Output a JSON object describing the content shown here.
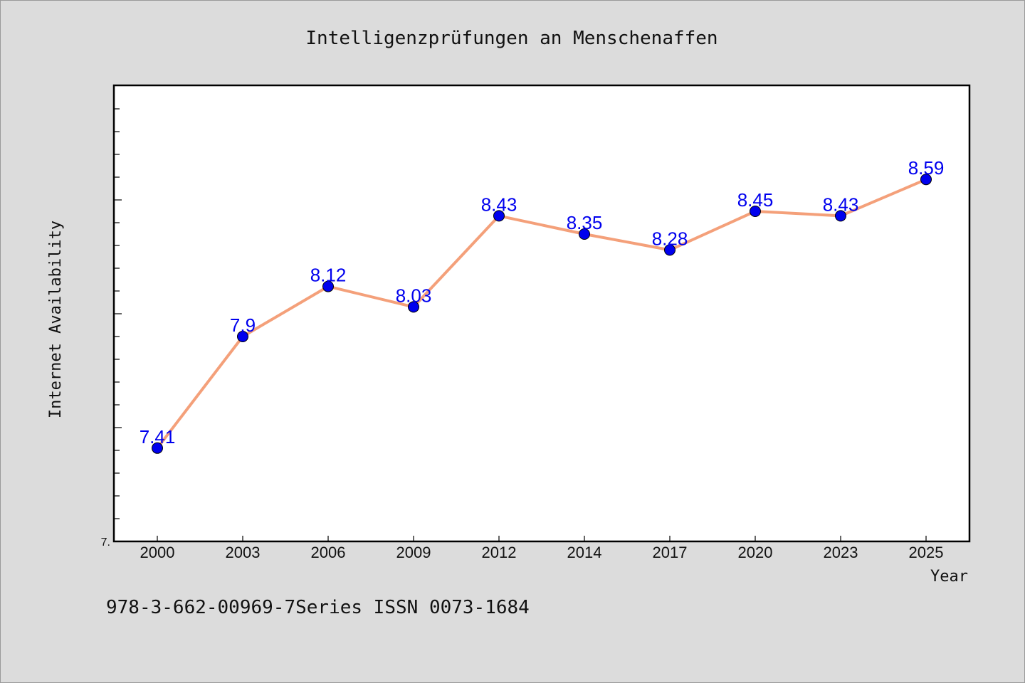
{
  "chart_data": {
    "type": "line",
    "title": "Intelligenzprüfungen an Menschenaffen",
    "xlabel": "Year",
    "ylabel": "Internet Availability",
    "categories": [
      "2000",
      "2003",
      "2006",
      "2009",
      "2012",
      "2014",
      "2017",
      "2020",
      "2023",
      "2025"
    ],
    "series": [
      {
        "values": [
          7.41,
          7.9,
          8.12,
          8.03,
          8.43,
          8.35,
          8.28,
          8.45,
          8.43,
          8.59
        ]
      }
    ],
    "data_labels": [
      "7.41",
      "7.9",
      "8.12",
      "8.03",
      "8.43",
      "8.35",
      "8.28",
      "8.45",
      "8.43",
      "8.59"
    ],
    "ylim": [
      7.0,
      9.0
    ],
    "ytick_label": "7.",
    "grid": false,
    "legend": "none",
    "colors": {
      "line": "#f4a07a",
      "marker": "#0000ee",
      "label": "#0000ee",
      "background": "#dcdcdc",
      "plot_bg": "#ffffff"
    }
  },
  "footer": {
    "text": "978-3-662-00969-7Series ISSN 0073-1684"
  }
}
